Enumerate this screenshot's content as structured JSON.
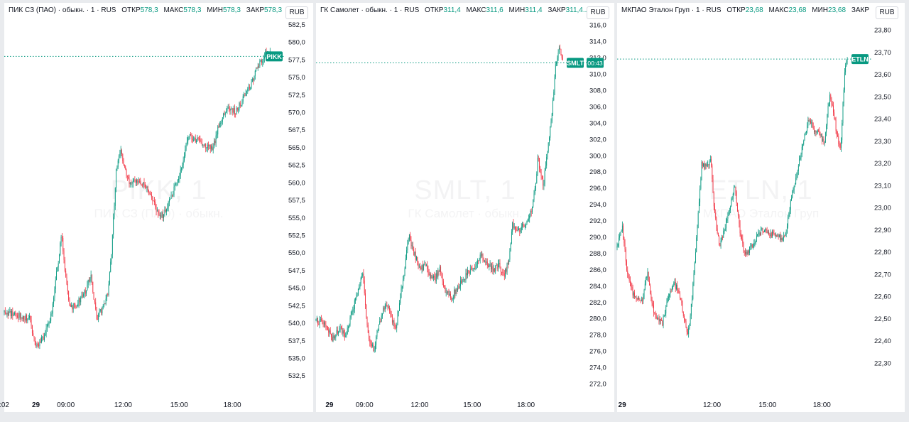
{
  "colors": {
    "up": "#089981",
    "down": "#f23645",
    "tag": "#089981",
    "price_line": "#089981"
  },
  "panes": [
    {
      "legend": {
        "title": "ПИК СЗ (ПАО) · обыкн. · 1 · RUS",
        "open_label": "ОТКР",
        "open": "578,3",
        "high_label": "МАКС",
        "high": "578,3",
        "low_label": "МИН",
        "low": "578,3",
        "close_label": "ЗАКР",
        "close": "578,3"
      },
      "unit": "RUB",
      "watermark": {
        "symbol": "PIKK, 1",
        "name": "ПИК СЗ (ПАО) · обыкн."
      },
      "price_tag": {
        "label": "PIKK",
        "timer": ""
      },
      "chart_data": {
        "type": "candlestick",
        "ylim": [
          531.0,
          583.0
        ],
        "yticks": [
          "582,5",
          "580,0",
          "577,5",
          "575,0",
          "572,5",
          "570,0",
          "567,5",
          "565,0",
          "562,5",
          "560,0",
          "557,5",
          "555,0",
          "552,5",
          "550,0",
          "547,5",
          "545,0",
          "542,5",
          "540,0",
          "537,5",
          "535,0",
          "532,5"
        ],
        "xticks": [
          {
            "label": ":02",
            "t": 0.0
          },
          {
            "label": "29",
            "t": 0.113,
            "bold": true
          },
          {
            "label": "09:00",
            "t": 0.22
          },
          {
            "label": "12:00",
            "t": 0.425
          },
          {
            "label": "15:00",
            "t": 0.625
          },
          {
            "label": "18:00",
            "t": 0.815
          }
        ],
        "last_price": 578.0,
        "path": [
          [
            0.0,
            541.6
          ],
          [
            0.05,
            541.2
          ],
          [
            0.09,
            540.6
          ],
          [
            0.115,
            536.5
          ],
          [
            0.14,
            538.0
          ],
          [
            0.17,
            541.5
          ],
          [
            0.19,
            548.0
          ],
          [
            0.205,
            552.5
          ],
          [
            0.215,
            548.0
          ],
          [
            0.235,
            542.0
          ],
          [
            0.26,
            542.8
          ],
          [
            0.29,
            544.5
          ],
          [
            0.31,
            547.0
          ],
          [
            0.33,
            540.5
          ],
          [
            0.355,
            542.5
          ],
          [
            0.37,
            544.5
          ],
          [
            0.385,
            551.0
          ],
          [
            0.4,
            562.0
          ],
          [
            0.415,
            564.8
          ],
          [
            0.425,
            562.5
          ],
          [
            0.45,
            559.7
          ],
          [
            0.475,
            560.3
          ],
          [
            0.5,
            559.8
          ],
          [
            0.525,
            558.5
          ],
          [
            0.545,
            555.8
          ],
          [
            0.565,
            555.3
          ],
          [
            0.585,
            556.8
          ],
          [
            0.605,
            558.8
          ],
          [
            0.625,
            561.0
          ],
          [
            0.64,
            563.5
          ],
          [
            0.66,
            567.0
          ],
          [
            0.68,
            566.3
          ],
          [
            0.7,
            565.8
          ],
          [
            0.72,
            565.3
          ],
          [
            0.745,
            564.6
          ],
          [
            0.765,
            568.2
          ],
          [
            0.785,
            569.8
          ],
          [
            0.805,
            570.8
          ],
          [
            0.825,
            570.0
          ],
          [
            0.845,
            571.3
          ],
          [
            0.865,
            572.8
          ],
          [
            0.885,
            574.2
          ],
          [
            0.905,
            576.5
          ],
          [
            0.925,
            577.8
          ],
          [
            0.94,
            578.8
          ],
          [
            0.95,
            578.3
          ]
        ]
      }
    },
    {
      "legend": {
        "title": "ГК Самолет · обыкн. · 1 · RUS",
        "open_label": "ОТКР",
        "open": "311,4",
        "high_label": "МАКС",
        "high": "311,6",
        "low_label": "МИН",
        "low": "311,4",
        "close_label": "ЗАКР",
        "close": "311,4..."
      },
      "unit": "RUB",
      "watermark": {
        "symbol": "SMLT, 1",
        "name": "ГК Самолет · обыкн."
      },
      "price_tag": {
        "label": "SMLT",
        "timer": "00:43"
      },
      "chart_data": {
        "type": "candlestick",
        "ylim": [
          271.0,
          316.5
        ],
        "yticks": [
          "316,0",
          "314,0",
          "312,0",
          "310,0",
          "308,0",
          "306,0",
          "304,0",
          "302,0",
          "300,0",
          "298,0",
          "296,0",
          "294,0",
          "292,0",
          "290,0",
          "288,0",
          "286,0",
          "284,0",
          "282,0",
          "280,0",
          "278,0",
          "276,0",
          "274,0",
          "272,0"
        ],
        "xticks": [
          {
            "label": "29",
            "t": 0.05,
            "bold": true
          },
          {
            "label": "09:00",
            "t": 0.18
          },
          {
            "label": "12:00",
            "t": 0.385
          },
          {
            "label": "15:00",
            "t": 0.58
          },
          {
            "label": "18:00",
            "t": 0.78
          }
        ],
        "last_price": 311.4,
        "path": [
          [
            0.0,
            279.8
          ],
          [
            0.03,
            279.5
          ],
          [
            0.06,
            277.5
          ],
          [
            0.09,
            278.8
          ],
          [
            0.11,
            278.0
          ],
          [
            0.13,
            280.2
          ],
          [
            0.155,
            283.5
          ],
          [
            0.175,
            285.8
          ],
          [
            0.185,
            280.5
          ],
          [
            0.2,
            277.0
          ],
          [
            0.215,
            276.2
          ],
          [
            0.235,
            279.5
          ],
          [
            0.255,
            281.5
          ],
          [
            0.275,
            280.8
          ],
          [
            0.295,
            278.5
          ],
          [
            0.315,
            283.0
          ],
          [
            0.33,
            286.5
          ],
          [
            0.345,
            290.2
          ],
          [
            0.365,
            288.0
          ],
          [
            0.385,
            286.2
          ],
          [
            0.405,
            286.5
          ],
          [
            0.42,
            285.5
          ],
          [
            0.44,
            284.8
          ],
          [
            0.46,
            286.0
          ],
          [
            0.48,
            283.5
          ],
          [
            0.5,
            282.5
          ],
          [
            0.52,
            283.5
          ],
          [
            0.545,
            284.8
          ],
          [
            0.565,
            285.8
          ],
          [
            0.59,
            286.5
          ],
          [
            0.61,
            287.8
          ],
          [
            0.635,
            286.8
          ],
          [
            0.66,
            286.0
          ],
          [
            0.68,
            286.5
          ],
          [
            0.7,
            285.5
          ],
          [
            0.715,
            287.0
          ],
          [
            0.73,
            291.5
          ],
          [
            0.755,
            291.0
          ],
          [
            0.775,
            291.5
          ],
          [
            0.79,
            292.5
          ],
          [
            0.8,
            293.5
          ],
          [
            0.815,
            296.0
          ],
          [
            0.825,
            300.0
          ],
          [
            0.835,
            297.5
          ],
          [
            0.845,
            296.5
          ],
          [
            0.86,
            300.5
          ],
          [
            0.875,
            304.5
          ],
          [
            0.89,
            311.0
          ],
          [
            0.905,
            313.5
          ],
          [
            0.915,
            311.4
          ]
        ]
      }
    },
    {
      "legend": {
        "title": "МКПАО Эталон Груп · 1 · RUS",
        "open_label": "ОТКР",
        "open": "23,68",
        "high_label": "МАКС",
        "high": "23,68",
        "low_label": "МИН",
        "low": "23,68",
        "close_label": "ЗАКР",
        "close": ""
      },
      "unit": "RUB",
      "watermark": {
        "symbol": "ETLN, 1",
        "name": "МКПАО Эталон Груп"
      },
      "price_tag": {
        "label": "ETLN",
        "timer": ""
      },
      "chart_data": {
        "type": "candlestick",
        "ylim": [
          22.24,
          23.84
        ],
        "yticks": [
          "23,80",
          "23,70",
          "23,60",
          "23,50",
          "23,40",
          "23,30",
          "23,20",
          "23,10",
          "23,00",
          "22,90",
          "22,80",
          "22,70",
          "22,60",
          "22,50",
          "22,40",
          "22,30"
        ],
        "xticks": [
          {
            "label": "29",
            "t": 0.02,
            "bold": true
          },
          {
            "label": "12:00",
            "t": 0.375
          },
          {
            "label": "15:00",
            "t": 0.595
          },
          {
            "label": "18:00",
            "t": 0.81
          }
        ],
        "last_price": 23.67,
        "path": [
          [
            0.0,
            22.82
          ],
          [
            0.02,
            22.92
          ],
          [
            0.04,
            22.7
          ],
          [
            0.06,
            22.62
          ],
          [
            0.08,
            22.6
          ],
          [
            0.1,
            22.58
          ],
          [
            0.12,
            22.72
          ],
          [
            0.14,
            22.55
          ],
          [
            0.16,
            22.5
          ],
          [
            0.18,
            22.48
          ],
          [
            0.2,
            22.6
          ],
          [
            0.225,
            22.66
          ],
          [
            0.245,
            22.62
          ],
          [
            0.265,
            22.5
          ],
          [
            0.28,
            22.42
          ],
          [
            0.295,
            22.58
          ],
          [
            0.315,
            22.88
          ],
          [
            0.335,
            23.2
          ],
          [
            0.355,
            23.18
          ],
          [
            0.37,
            23.22
          ],
          [
            0.385,
            22.98
          ],
          [
            0.405,
            22.82
          ],
          [
            0.425,
            22.9
          ],
          [
            0.445,
            23.0
          ],
          [
            0.465,
            23.1
          ],
          [
            0.485,
            22.9
          ],
          [
            0.505,
            22.78
          ],
          [
            0.525,
            22.82
          ],
          [
            0.55,
            22.86
          ],
          [
            0.575,
            22.9
          ],
          [
            0.6,
            22.88
          ],
          [
            0.625,
            22.88
          ],
          [
            0.65,
            22.86
          ],
          [
            0.67,
            22.9
          ],
          [
            0.69,
            23.05
          ],
          [
            0.705,
            23.12
          ],
          [
            0.72,
            23.2
          ],
          [
            0.74,
            23.32
          ],
          [
            0.76,
            23.4
          ],
          [
            0.78,
            23.35
          ],
          [
            0.8,
            23.33
          ],
          [
            0.82,
            23.3
          ],
          [
            0.84,
            23.5
          ],
          [
            0.855,
            23.44
          ],
          [
            0.87,
            23.32
          ],
          [
            0.885,
            23.27
          ],
          [
            0.9,
            23.62
          ],
          [
            0.91,
            23.67
          ]
        ]
      }
    }
  ]
}
